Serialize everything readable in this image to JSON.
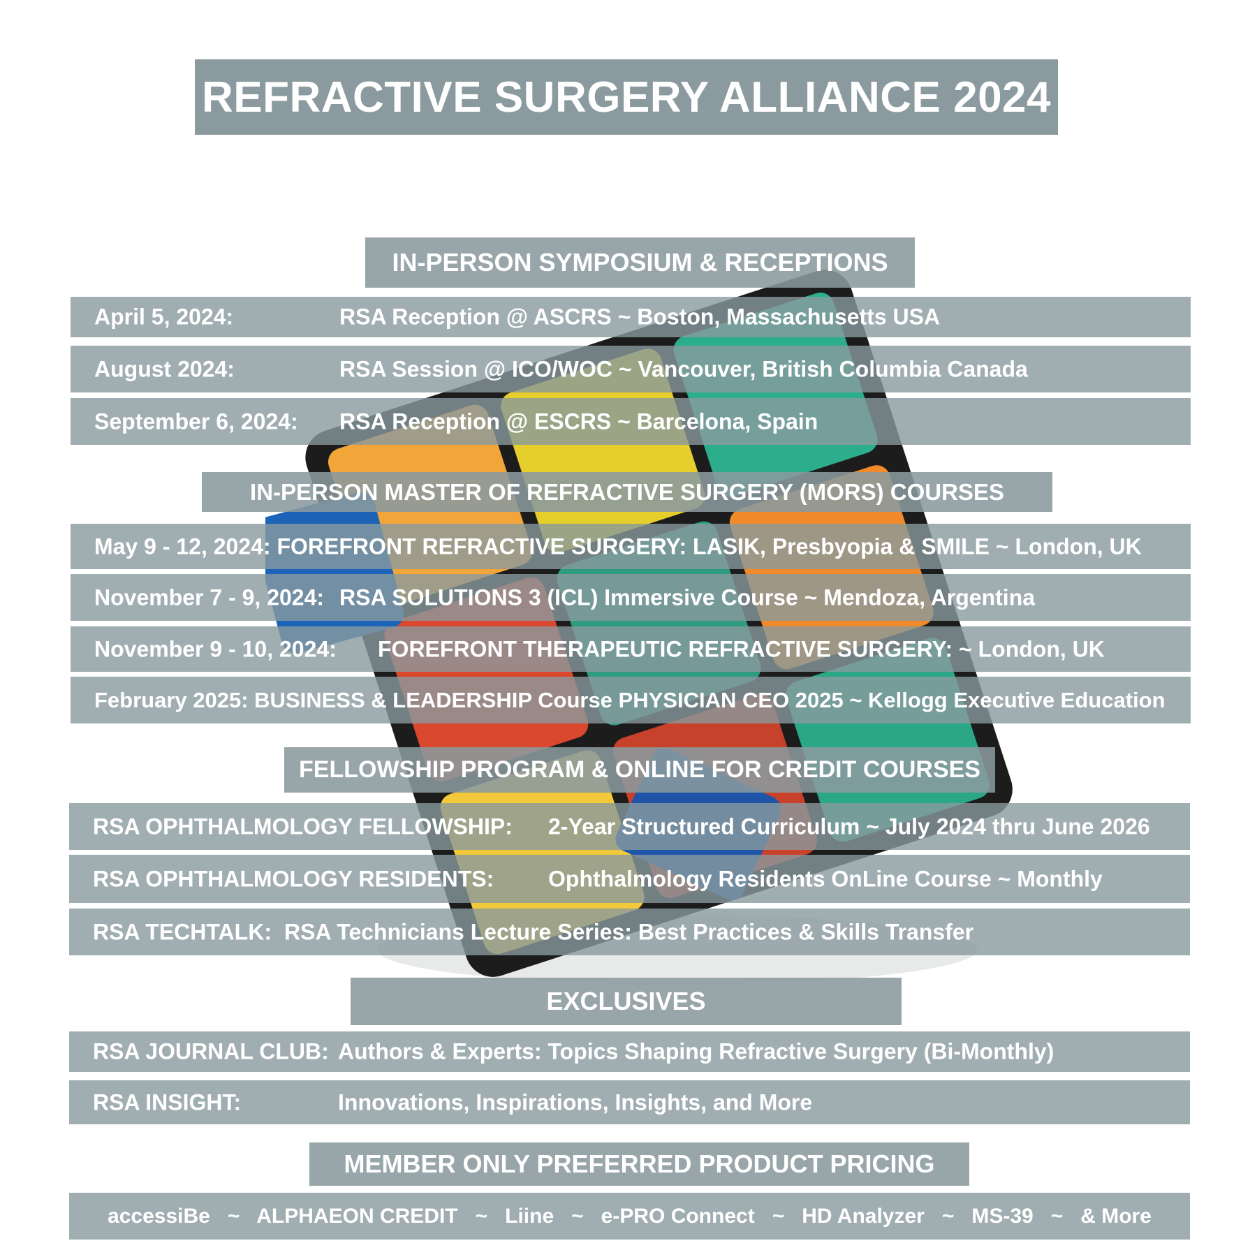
{
  "title": "REFRACTIVE SURGERY ALLIANCE 2024",
  "sections": {
    "symposium": {
      "heading": "IN-PERSON SYMPOSIUM & RECEPTIONS",
      "rows": [
        {
          "date": "April 5, 2024:",
          "text": "RSA Reception @ ASCRS  ~  Boston, Massachusetts  USA"
        },
        {
          "date": "August 2024:",
          "text": "RSA Session @ ICO/WOC  ~  Vancouver, British Columbia  Canada"
        },
        {
          "date": "September 6, 2024:",
          "text": "RSA Reception @ ESCRS  ~  Barcelona,  Spain"
        }
      ]
    },
    "mors": {
      "heading": "IN-PERSON MASTER OF REFRACTIVE SURGERY (MORS) COURSES",
      "rows": [
        {
          "text": "May 9 - 12, 2024: FOREFRONT REFRACTIVE SURGERY:  LASIK, Presbyopia & SMILE  ~  London, UK"
        },
        {
          "date": "November 7 - 9, 2024:",
          "text": "RSA SOLUTIONS 3 (ICL) Immersive Course  ~  Mendoza, Argentina"
        },
        {
          "date": "November  9 - 10, 2024:",
          "text": "FOREFRONT THERAPEUTIC REFRACTIVE SURGERY:  ~  London, UK"
        },
        {
          "text": "February 2025: BUSINESS & LEADERSHIP Course PHYSICIAN CEO 2025  ~  Kellogg Executive Education"
        }
      ]
    },
    "fellowship": {
      "heading": "FELLOWSHIP PROGRAM & ONLINE FOR CREDIT COURSES",
      "rows": [
        {
          "label": "RSA OPHTHALMOLOGY FELLOWSHIP:",
          "text": "2-Year Structured Curriculum ~ July 2024 thru June 2026"
        },
        {
          "label": "RSA OPHTHALMOLOGY RESIDENTS:",
          "text": "Ophthalmology Residents OnLine Course  ~  Monthly"
        },
        {
          "label": "RSA TECHTALK:",
          "text": "RSA Technicians Lecture Series:  Best Practices &  Skills Transfer"
        }
      ]
    },
    "exclusives": {
      "heading": "EXCLUSIVES",
      "rows": [
        {
          "label": "RSA JOURNAL CLUB:",
          "text": "Authors & Experts:  Topics Shaping Refractive Surgery (Bi-Monthly)"
        },
        {
          "label": "RSA INSIGHT:",
          "text": "Innovations, Inspirations, Insights, and More"
        }
      ]
    },
    "pricing": {
      "heading": "MEMBER ONLY PREFERRED PRODUCT PRICING",
      "row": "accessiBe   ~   ALPHAEON CREDIT   ~   Liine   ~   e-PRO Connect   ~   HD Analyzer   ~   MS-39   ~   & More"
    }
  },
  "colors": {
    "box": "#8a9a9e",
    "text": "#ffffff"
  }
}
